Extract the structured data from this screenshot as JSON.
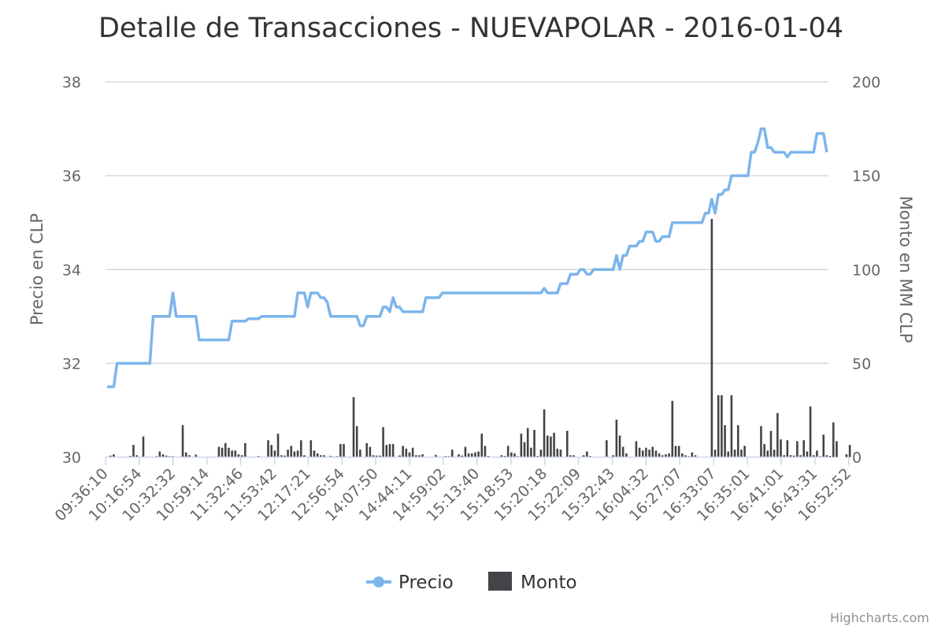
{
  "chart_data": {
    "type": "line+bar",
    "title": "Detalle de Transacciones - NUEVAPOLAR - 2016-01-04",
    "y_left_label": "Precio en CLP",
    "y_right_label": "Monto en MM CLP",
    "y_left_ticks": [
      "30",
      "32",
      "34",
      "36",
      "38"
    ],
    "y_right_ticks": [
      "0",
      "50",
      "100",
      "150",
      "200"
    ],
    "ylim_left": [
      30,
      38
    ],
    "ylim_right": [
      0,
      200
    ],
    "grid": true,
    "legend_position": "bottom-center",
    "x_tick_labels": [
      "09:36:10",
      "10:16:54",
      "10:32:32",
      "10:59:14",
      "11:32:46",
      "11:53:42",
      "12:17:21",
      "12:56:54",
      "14:07:50",
      "14:44:11",
      "14:59:02",
      "15:13:40",
      "15:18:53",
      "15:20:18",
      "15:22:09",
      "15:32:43",
      "16:04:32",
      "16:27:07",
      "16:33:07",
      "16:35:01",
      "16:41:01",
      "16:43:31",
      "16:52:52"
    ],
    "n_points": 220,
    "series": [
      {
        "name": "Precio",
        "kind": "line",
        "axis": "left",
        "color": "#7cb5ec",
        "values": [
          31.5,
          31.5,
          31.5,
          32.0,
          32.0,
          32.0,
          32.0,
          32.0,
          32.0,
          32.0,
          32.0,
          32.0,
          32.0,
          32.0,
          33.0,
          33.0,
          33.0,
          33.0,
          33.0,
          33.0,
          33.5,
          33.0,
          33.0,
          33.0,
          33.0,
          33.0,
          33.0,
          33.0,
          32.5,
          32.5,
          32.5,
          32.5,
          32.5,
          32.5,
          32.5,
          32.5,
          32.5,
          32.5,
          32.9,
          32.9,
          32.9,
          32.9,
          32.9,
          32.95,
          32.95,
          32.95,
          32.95,
          33.0,
          33.0,
          33.0,
          33.0,
          33.0,
          33.0,
          33.0,
          33.0,
          33.0,
          33.0,
          33.0,
          33.5,
          33.5,
          33.5,
          33.2,
          33.5,
          33.5,
          33.5,
          33.4,
          33.4,
          33.3,
          33.0,
          33.0,
          33.0,
          33.0,
          33.0,
          33.0,
          33.0,
          33.0,
          33.0,
          32.8,
          32.8,
          33.0,
          33.0,
          33.0,
          33.0,
          33.0,
          33.2,
          33.2,
          33.1,
          33.4,
          33.2,
          33.2,
          33.1,
          33.1,
          33.1,
          33.1,
          33.1,
          33.1,
          33.1,
          33.4,
          33.4,
          33.4,
          33.4,
          33.4,
          33.5,
          33.5,
          33.5,
          33.5,
          33.5,
          33.5,
          33.5,
          33.5,
          33.5,
          33.5,
          33.5,
          33.5,
          33.5,
          33.5,
          33.5,
          33.5,
          33.5,
          33.5,
          33.5,
          33.5,
          33.5,
          33.5,
          33.5,
          33.5,
          33.5,
          33.5,
          33.5,
          33.5,
          33.5,
          33.5,
          33.5,
          33.6,
          33.5,
          33.5,
          33.5,
          33.5,
          33.7,
          33.7,
          33.7,
          33.9,
          33.9,
          33.9,
          34.0,
          34.0,
          33.9,
          33.9,
          34.0,
          34.0,
          34.0,
          34.0,
          34.0,
          34.0,
          34.0,
          34.3,
          34.0,
          34.3,
          34.3,
          34.5,
          34.5,
          34.5,
          34.6,
          34.6,
          34.8,
          34.8,
          34.8,
          34.6,
          34.6,
          34.7,
          34.7,
          34.7,
          35.0,
          35.0,
          35.0,
          35.0,
          35.0,
          35.0,
          35.0,
          35.0,
          35.0,
          35.0,
          35.2,
          35.2,
          35.5,
          35.2,
          35.6,
          35.6,
          35.7,
          35.7,
          36.0,
          36.0,
          36.0,
          36.0,
          36.0,
          36.0,
          36.5,
          36.5,
          36.7,
          37.0,
          37.0,
          36.6,
          36.6,
          36.5,
          36.5,
          36.5,
          36.5,
          36.4,
          36.5,
          36.5,
          36.5,
          36.5,
          36.5,
          36.5,
          36.5,
          36.5,
          36.9,
          36.9,
          36.9,
          36.5
        ]
      },
      {
        "name": "Monto",
        "kind": "bar",
        "axis": "right",
        "color": "#434348",
        "values": [
          0,
          0.8,
          1.5,
          0,
          0,
          0,
          0,
          0.6,
          6.5,
          1.0,
          0,
          11.0,
          0,
          0,
          0,
          0.5,
          3.0,
          1.5,
          0.8,
          0.5,
          0.5,
          0,
          0,
          17.0,
          2.5,
          1.0,
          0,
          1.3,
          0,
          0,
          0,
          0,
          0,
          0,
          5.5,
          5.0,
          7.5,
          5.0,
          3.5,
          3.5,
          1.5,
          1.0,
          7.5,
          0,
          0,
          0,
          0.6,
          0,
          0,
          9.0,
          6.5,
          3.5,
          12.5,
          1.0,
          0.8,
          4.0,
          6.0,
          3.0,
          3.5,
          9.0,
          1.0,
          0,
          9.0,
          3.5,
          2.0,
          1.0,
          1.0,
          0,
          0.7,
          0.3,
          0.5,
          7.0,
          7.0,
          0,
          0,
          32.0,
          16.5,
          4.0,
          0,
          7.5,
          5.5,
          1.0,
          0.8,
          0.8,
          16.0,
          6.5,
          7.0,
          7.0,
          0,
          0.9,
          6.0,
          4.5,
          2.5,
          5.0,
          1.0,
          1.0,
          1.5,
          0,
          0,
          0,
          1.2,
          0,
          0,
          0.6,
          0.5,
          4.0,
          0,
          1.5,
          0.8,
          5.5,
          2.0,
          2.0,
          2.5,
          3.0,
          12.5,
          6.0,
          0.6,
          0,
          0,
          0,
          1.0,
          0.6,
          6.0,
          2.5,
          2.0,
          0.5,
          12.5,
          8.0,
          15.5,
          5.0,
          14.5,
          0.6,
          4.0,
          25.5,
          11.5,
          11.0,
          13.0,
          4.5,
          4.0,
          0,
          14.0,
          1.0,
          1.0,
          0,
          0,
          1.0,
          3.0,
          0.6,
          0,
          0,
          0,
          0,
          9.0,
          0,
          1.0,
          20.0,
          11.5,
          5.5,
          2.0,
          0,
          0,
          8.5,
          5.0,
          3.5,
          5.0,
          4.0,
          5.5,
          3.5,
          2.0,
          1.0,
          1.5,
          2.0,
          30.0,
          6.0,
          6.0,
          2.0,
          1.0,
          0.5,
          2.5,
          1.0,
          0,
          0,
          0,
          0,
          127.0,
          4.0,
          33.0,
          33.0,
          17.0,
          3.0,
          33.0,
          4.0,
          17.0,
          4.0,
          6.0,
          0,
          0,
          0,
          0,
          16.5,
          7.0,
          3.5,
          14.0,
          4.0,
          23.5,
          9.5,
          1.0,
          9.0,
          1.0,
          0.8,
          8.5,
          1.0,
          9.0,
          3.0,
          27.0,
          1.0,
          3.5,
          0.5,
          12.0,
          1.0,
          0.6,
          18.5,
          8.5,
          0,
          0,
          1.5,
          6.5
        ]
      }
    ]
  },
  "credits": "Highcharts.com"
}
